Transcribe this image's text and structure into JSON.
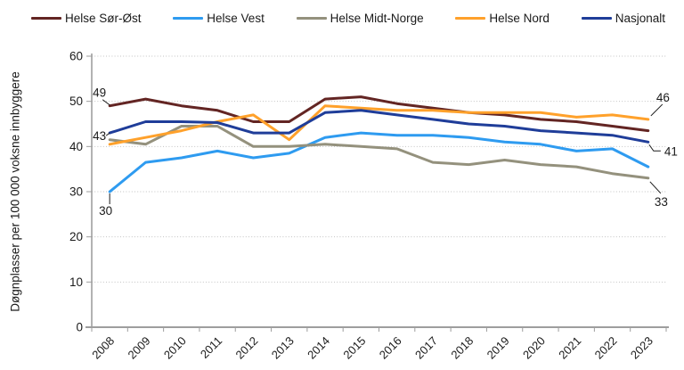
{
  "legend": {
    "items": [
      {
        "label": "Helse Sør-Øst",
        "color": "#632523"
      },
      {
        "label": "Helse Vest",
        "color": "#2E9BF0"
      },
      {
        "label": "Helse Midt-Norge",
        "color": "#94917D"
      },
      {
        "label": "Helse Nord",
        "color": "#FFA12B"
      },
      {
        "label": "Nasjonalt",
        "color": "#1F3D99"
      }
    ]
  },
  "chart_data": {
    "type": "line",
    "title": "",
    "xlabel": "",
    "ylabel": "Døgnplasser per 100 000 voksne innbyggere",
    "ylim": [
      0,
      60
    ],
    "y_ticks": [
      0,
      10,
      20,
      30,
      40,
      50,
      60
    ],
    "grid": "horizontal-dotted",
    "legend_position": "top",
    "categories": [
      "2008",
      "2009",
      "2010",
      "2011",
      "2012",
      "2013",
      "2014",
      "2015",
      "2016",
      "2017",
      "2018",
      "2019",
      "2020",
      "2021",
      "2022",
      "2023"
    ],
    "series": [
      {
        "name": "Helse Sør-Øst",
        "color": "#632523",
        "values": [
          49,
          50.5,
          49,
          48,
          45.5,
          45.5,
          50.5,
          51,
          49.5,
          48.5,
          47.5,
          47,
          46,
          45.5,
          44.5,
          43.5
        ]
      },
      {
        "name": "Helse Vest",
        "color": "#2E9BF0",
        "values": [
          30,
          36.5,
          37.5,
          39,
          37.5,
          38.5,
          42,
          43,
          42.5,
          42.5,
          42,
          41,
          40.5,
          39,
          39.5,
          35.5
        ]
      },
      {
        "name": "Helse Midt-Norge",
        "color": "#94917D",
        "values": [
          41.5,
          40.5,
          44.5,
          44.5,
          40,
          40,
          40.5,
          40,
          39.5,
          36.5,
          36,
          37,
          36,
          35.5,
          34,
          33
        ]
      },
      {
        "name": "Helse Nord",
        "color": "#FFA12B",
        "values": [
          40.5,
          42,
          43.5,
          45.5,
          47,
          41.5,
          49,
          48.5,
          48,
          48,
          47.5,
          47.5,
          47.5,
          46.5,
          47,
          46
        ]
      },
      {
        "name": "Nasjonalt",
        "color": "#1F3D99",
        "values": [
          43,
          45.5,
          45.5,
          45.3,
          43,
          43,
          47.5,
          48,
          47,
          46,
          45,
          44.5,
          43.5,
          43,
          42.5,
          41
        ]
      }
    ],
    "annotations": [
      {
        "text": "49",
        "series": "Helse Sør-Øst",
        "category": "2008",
        "value": 49,
        "placement": "above"
      },
      {
        "text": "43",
        "series": "Nasjonalt",
        "category": "2008",
        "value": 43,
        "placement": "left"
      },
      {
        "text": "30",
        "series": "Helse Vest",
        "category": "2008",
        "value": 30,
        "placement": "below"
      },
      {
        "text": "46",
        "series": "Helse Nord",
        "category": "2023",
        "value": 46,
        "placement": "above-right"
      },
      {
        "text": "41",
        "series": "Nasjonalt",
        "category": "2023",
        "value": 41,
        "placement": "right"
      },
      {
        "text": "33",
        "series": "Helse Midt-Norge",
        "category": "2023",
        "value": 33,
        "placement": "below-right"
      }
    ]
  }
}
